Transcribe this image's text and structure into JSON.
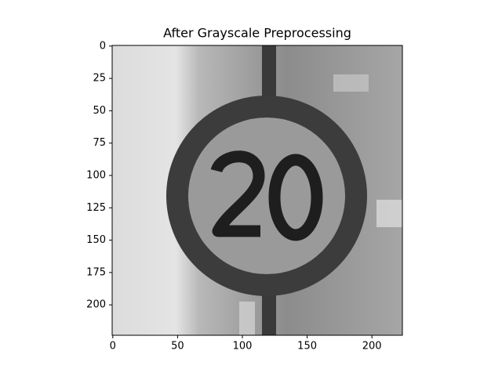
{
  "chart_data": {
    "type": "image",
    "title": "After Grayscale Preprocessing",
    "xlim": [
      -0.5,
      223.5
    ],
    "ylim": [
      223.5,
      -0.5
    ],
    "xticks": [
      0,
      50,
      100,
      150,
      200
    ],
    "yticks": [
      0,
      25,
      50,
      75,
      100,
      125,
      150,
      175,
      200
    ]
  }
}
